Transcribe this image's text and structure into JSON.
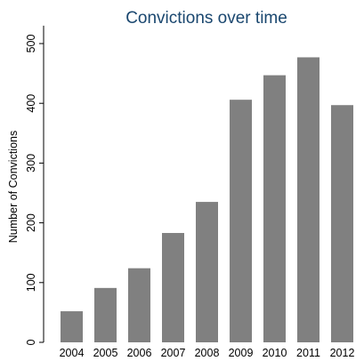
{
  "chart_data": {
    "type": "bar",
    "title": "Convictions over time",
    "xlabel": "",
    "ylabel": "Number of Convictions",
    "categories": [
      "2004",
      "2005",
      "2006",
      "2007",
      "2008",
      "2009",
      "2010",
      "2011",
      "2012"
    ],
    "values": [
      52,
      91,
      124,
      183,
      235,
      406,
      447,
      477,
      397
    ],
    "ylim": [
      0,
      530
    ],
    "yticks": [
      0,
      100,
      200,
      300,
      400,
      500
    ],
    "bar_color": "#808080",
    "title_color": "#1a476f",
    "grid": false
  }
}
